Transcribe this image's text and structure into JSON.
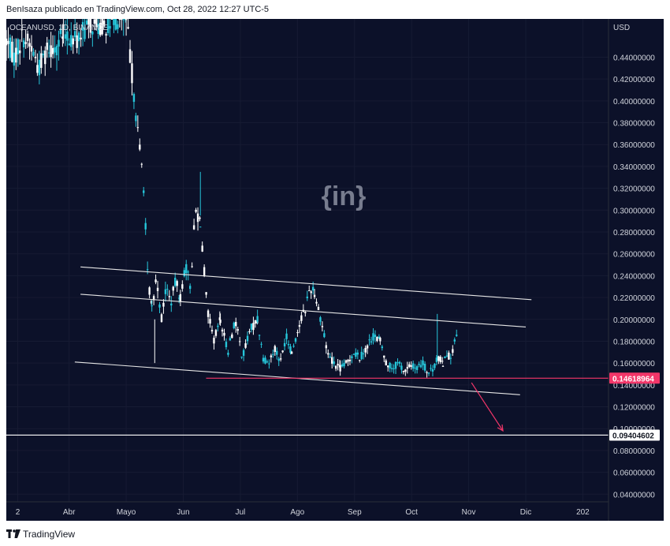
{
  "header": {
    "published_text": "BenIsaza publicado en TradingView.com, Oct 28, 2022 12:27 UTC-5"
  },
  "footer": {
    "brand": "TradingView"
  },
  "chart_data": {
    "type": "candlestick",
    "symbol_label": "OCEANUSD, 1D, BINANCE",
    "watermark": "{in}",
    "y_axis_unit": "USD",
    "y_ticks": [
      "0.44000000",
      "0.42000000",
      "0.40000000",
      "0.38000000",
      "0.36000000",
      "0.34000000",
      "0.32000000",
      "0.30000000",
      "0.28000000",
      "0.26000000",
      "0.24000000",
      "0.22000000",
      "0.20000000",
      "0.18000000",
      "0.16000000",
      "0.14000000",
      "0.12000000",
      "0.10000000",
      "0.08000000",
      "0.06000000",
      "0.04000000"
    ],
    "ylim": [
      0.033,
      0.475
    ],
    "x_ticks": [
      {
        "label": "2",
        "pos": 0.2
      },
      {
        "label": "Abr",
        "pos": 1.1
      },
      {
        "label": "Mayo",
        "pos": 2.1
      },
      {
        "label": "Jun",
        "pos": 3.1
      },
      {
        "label": "Jul",
        "pos": 4.1
      },
      {
        "label": "Ago",
        "pos": 5.1
      },
      {
        "label": "Sep",
        "pos": 6.1
      },
      {
        "label": "Oct",
        "pos": 7.1
      },
      {
        "label": "Nov",
        "pos": 8.1
      },
      {
        "label": "Dic",
        "pos": 9.1
      },
      {
        "label": "202",
        "pos": 10.1
      }
    ],
    "xlim": [
      0,
      10.55
    ],
    "price_labels": [
      {
        "value": "0.14618964",
        "y": 0.14618964,
        "color": "#f23669"
      },
      {
        "value": "0.09404602",
        "y": 0.09404602,
        "color": "#ffffff"
      }
    ],
    "horizontal_lines": [
      {
        "y": 0.14618964,
        "x_start": 3.5,
        "color": "#f23669"
      },
      {
        "y": 0.09404602,
        "x_start": 0.0,
        "color": "#ffffff"
      }
    ],
    "trend_lines": [
      {
        "x1": 1.3,
        "y1": 0.248,
        "x2": 9.2,
        "y2": 0.218
      },
      {
        "x1": 1.3,
        "y1": 0.223,
        "x2": 9.1,
        "y2": 0.193
      },
      {
        "x1": 1.2,
        "y1": 0.161,
        "x2": 9.0,
        "y2": 0.131
      }
    ],
    "arrow": {
      "x1": 8.15,
      "y1": 0.142,
      "x2": 8.7,
      "y2": 0.098,
      "color": "#f23669"
    },
    "up_color": "#26c6da",
    "down_color": "#ffffff",
    "ohlc_segments": [
      {
        "x0": 0.0,
        "x1": 1.0,
        "price": [
          0.455,
          0.44,
          0.46,
          0.45,
          0.43,
          0.448,
          0.45,
          0.46
        ]
      },
      {
        "x0": 1.0,
        "x1": 2.1,
        "price": [
          0.46,
          0.455,
          0.47,
          0.468,
          0.474,
          0.474
        ]
      },
      {
        "x0": 2.1,
        "x1": 2.55,
        "price": [
          0.474,
          0.44,
          0.4,
          0.36,
          0.33,
          0.24,
          0.21
        ]
      },
      {
        "x0": 2.55,
        "x1": 3.05,
        "price": [
          0.21,
          0.24,
          0.2,
          0.23,
          0.215,
          0.235,
          0.22
        ]
      },
      {
        "x0": 3.05,
        "x1": 3.4,
        "price": [
          0.22,
          0.25,
          0.23,
          0.3,
          0.29
        ]
      },
      {
        "x0": 3.4,
        "x1": 3.75,
        "price": [
          0.29,
          0.21,
          0.18,
          0.2
        ]
      },
      {
        "x0": 3.75,
        "x1": 4.4,
        "price": [
          0.2,
          0.17,
          0.2,
          0.165,
          0.19,
          0.2
        ]
      },
      {
        "x0": 4.4,
        "x1": 5.0,
        "price": [
          0.2,
          0.165,
          0.16,
          0.175,
          0.16,
          0.185,
          0.17
        ]
      },
      {
        "x0": 5.0,
        "x1": 5.4,
        "price": [
          0.17,
          0.185,
          0.2,
          0.21,
          0.23,
          0.225
        ]
      },
      {
        "x0": 5.4,
        "x1": 5.85,
        "price": [
          0.225,
          0.2,
          0.17,
          0.16,
          0.155
        ]
      },
      {
        "x0": 5.85,
        "x1": 6.55,
        "price": [
          0.155,
          0.16,
          0.17,
          0.165,
          0.175,
          0.185,
          0.18
        ]
      },
      {
        "x0": 6.55,
        "x1": 7.3,
        "price": [
          0.18,
          0.16,
          0.155,
          0.16,
          0.152,
          0.158,
          0.155,
          0.16
        ]
      },
      {
        "x0": 7.3,
        "x1": 7.65,
        "price": [
          0.16,
          0.15,
          0.155,
          0.165,
          0.16
        ]
      },
      {
        "x0": 7.65,
        "x1": 7.9,
        "price": [
          0.16,
          0.17,
          0.165,
          0.175,
          0.185
        ]
      }
    ],
    "spikes": [
      {
        "x": 7.55,
        "high": 0.205
      },
      {
        "x": 3.4,
        "high": 0.335
      },
      {
        "x": 2.6,
        "low": 0.16
      }
    ]
  }
}
